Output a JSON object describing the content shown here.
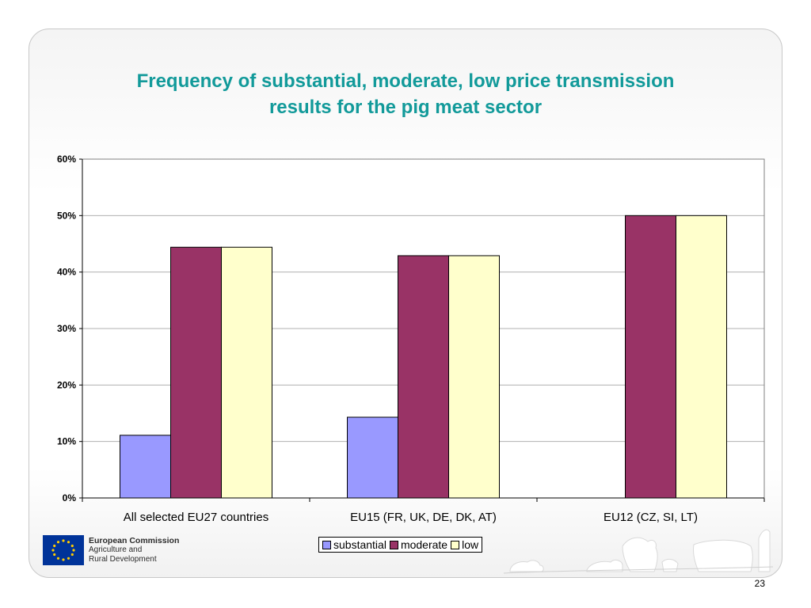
{
  "title": {
    "line1": "Frequency of substantial, moderate, low price transmission",
    "line2": "results for the pig meat sector"
  },
  "chart_data": {
    "type": "bar",
    "title": "",
    "xlabel": "",
    "ylabel": "",
    "categories": [
      "All selected EU27 countries",
      "EU15 (FR, UK, DE, DK, AT)",
      "EU12 (CZ, SI, LT)"
    ],
    "series": [
      {
        "name": "substantial",
        "values": [
          11.1,
          14.3,
          0
        ],
        "color": "#9999ff"
      },
      {
        "name": "moderate",
        "values": [
          44.4,
          42.9,
          50
        ],
        "color": "#993366"
      },
      {
        "name": "low",
        "values": [
          44.4,
          42.9,
          50
        ],
        "color": "#ffffcc"
      }
    ],
    "ylim": [
      0,
      60
    ],
    "yticks": [
      "0%",
      "10%",
      "20%",
      "30%",
      "40%",
      "50%",
      "60%"
    ],
    "grid": true,
    "legend": "bottom-center"
  },
  "footer": {
    "org_name": "European Commission",
    "org_line2": "Agriculture and",
    "org_line3": "Rural Development",
    "page_number": "23"
  },
  "logo": {
    "background": "#003399",
    "stars": "#ffcc00"
  }
}
